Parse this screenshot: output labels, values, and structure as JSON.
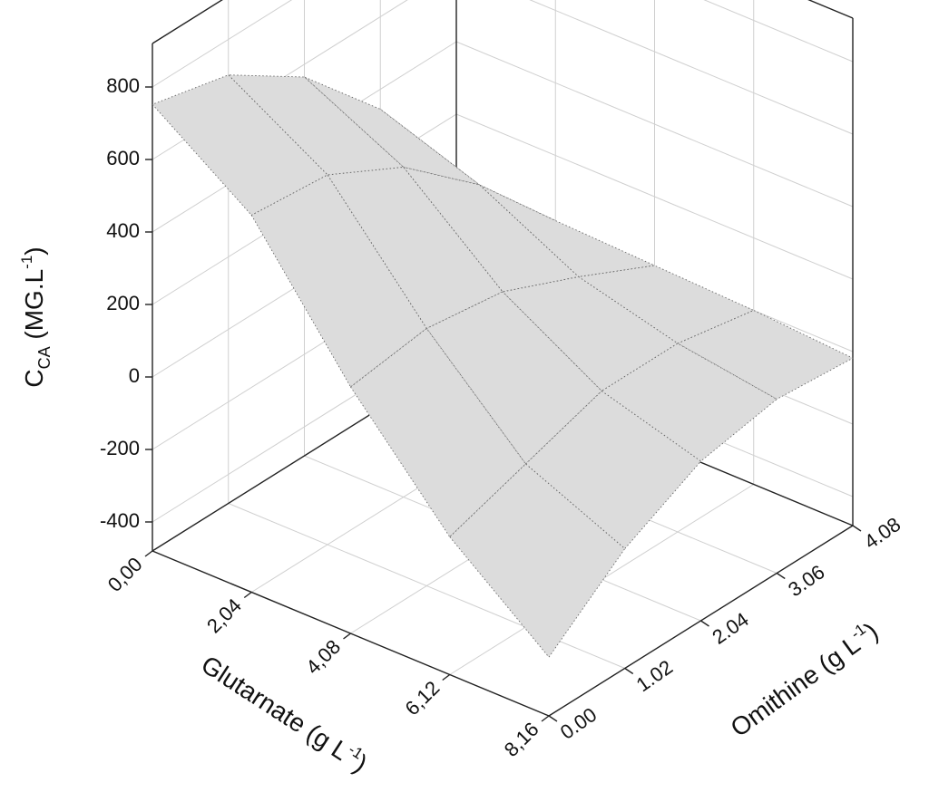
{
  "chart_data": {
    "type": "surface",
    "xlabel": [
      "Glutarnate (g L",
      "-1",
      ")"
    ],
    "ylabel": [
      "Omithine (g L",
      "-1",
      ")"
    ],
    "zlabel": [
      "C",
      "CA",
      " (MG.L",
      "-1",
      ")"
    ],
    "x": [
      0,
      2.04,
      4.08,
      6.12,
      8.16
    ],
    "y": [
      0,
      1.02,
      2.04,
      3.06,
      4.08
    ],
    "z": [
      [
        752,
        702,
        565,
        345,
        30
      ],
      [
        560,
        540,
        430,
        250,
        20
      ],
      [
        200,
        230,
        200,
        110,
        10
      ],
      [
        -100,
        -30,
        40,
        40,
        0
      ],
      [
        -318,
        -150,
        -40,
        0,
        -18
      ]
    ],
    "color": "#dcdcdc",
    "xlim": [
      0,
      8.16
    ],
    "ylim": [
      0,
      4.08
    ],
    "zlim": [
      -480,
      920
    ],
    "xticks": [
      {
        "value": 0,
        "label": "0,00"
      },
      {
        "value": 2.04,
        "label": "2,04"
      },
      {
        "value": 4.08,
        "label": "4,08"
      },
      {
        "value": 6.12,
        "label": "6,12"
      },
      {
        "value": 8.16,
        "label": "8,16"
      }
    ],
    "yticks": [
      {
        "value": 0,
        "label": "0.00"
      },
      {
        "value": 1.02,
        "label": "1.02"
      },
      {
        "value": 2.04,
        "label": "2.04"
      },
      {
        "value": 3.06,
        "label": "3.06"
      },
      {
        "value": 4.08,
        "label": "4.08"
      }
    ],
    "zticks": [
      -400,
      -200,
      0,
      200,
      400,
      600,
      800
    ],
    "grid": true
  }
}
